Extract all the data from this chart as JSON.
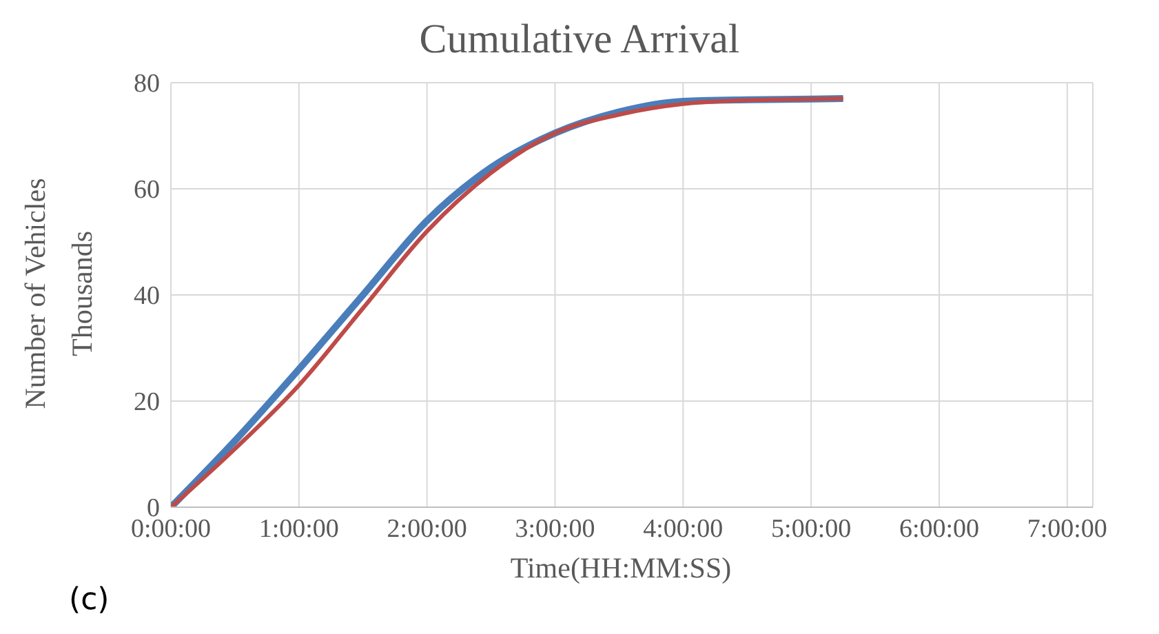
{
  "chart_data": {
    "type": "line",
    "title": "Cumulative Arrival",
    "xlabel": "Time(HH:MM:SS)",
    "ylabel": "Number of Vehicles\nThousands",
    "annotations": [
      "(c)"
    ],
    "x": [
      0,
      0.5,
      1,
      1.5,
      2,
      2.5,
      3,
      3.5,
      4,
      4.5,
      5,
      5.25
    ],
    "series": [
      {
        "color": "#4a7ebb",
        "values": [
          0,
          12.5,
          26,
          40,
          54,
          64,
          70.5,
          74.5,
          76.5,
          76.8,
          76.9,
          77
        ]
      },
      {
        "color": "#be4b48",
        "values": [
          0,
          11,
          23,
          37.5,
          52,
          63,
          70.5,
          74,
          76,
          76.7,
          76.9,
          77
        ]
      }
    ],
    "xlim": [
      0,
      7.2
    ],
    "xticks": [
      {
        "value": 0,
        "label": "0:00:00"
      },
      {
        "value": 1,
        "label": "1:00:00"
      },
      {
        "value": 2,
        "label": "2:00:00"
      },
      {
        "value": 3,
        "label": "3:00:00"
      },
      {
        "value": 4,
        "label": "4:00:00"
      },
      {
        "value": 5,
        "label": "5:00:00"
      },
      {
        "value": 6,
        "label": "6:00:00"
      },
      {
        "value": 7,
        "label": "7:00:00"
      }
    ],
    "ylim": [
      0,
      80
    ],
    "yticks": [
      0,
      20,
      40,
      60,
      80
    ],
    "grid": true,
    "marker": "none",
    "line_style": "solid"
  }
}
